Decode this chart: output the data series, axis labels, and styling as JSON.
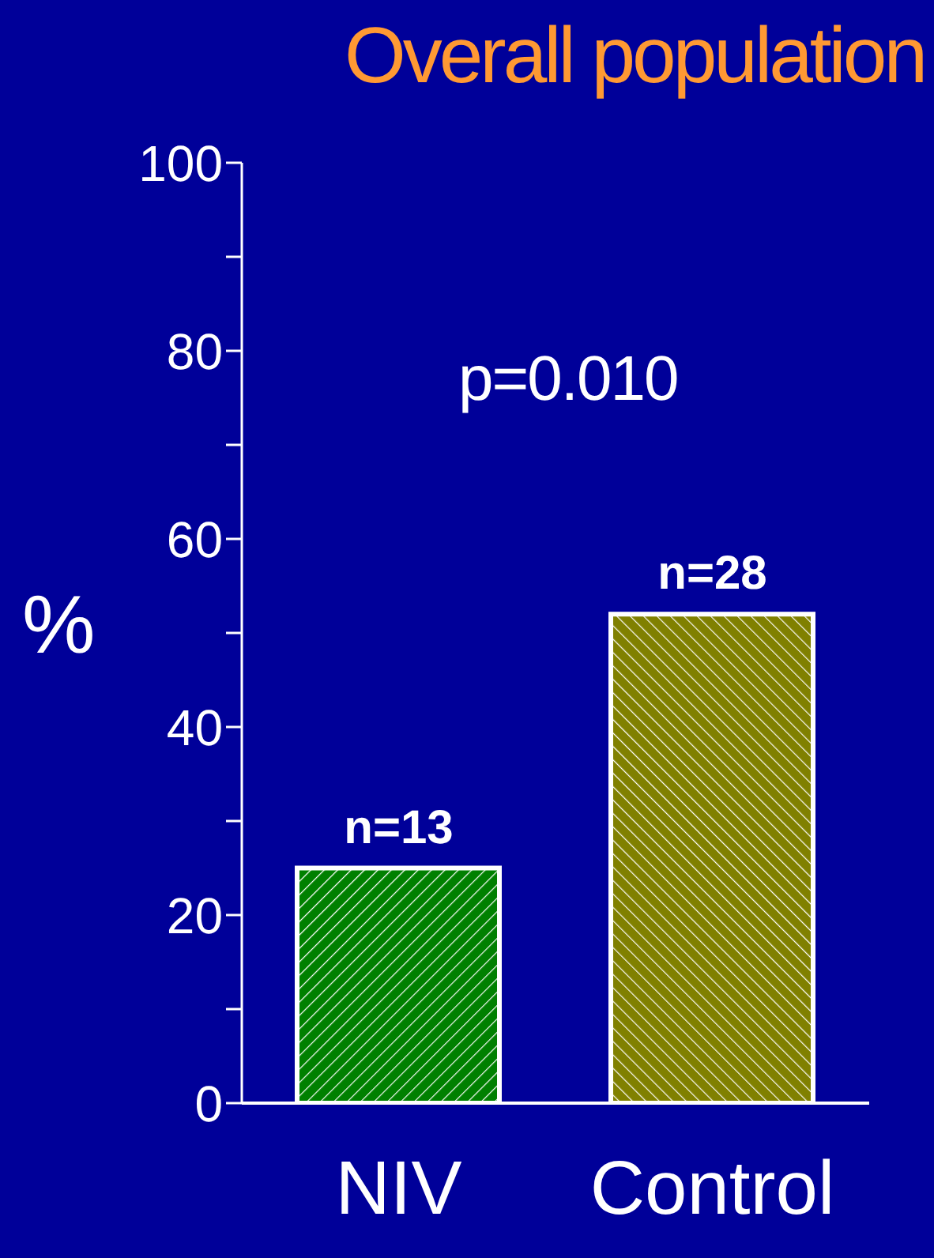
{
  "chart_data": {
    "type": "bar",
    "title": "Overall population",
    "ylabel": "%",
    "categories": [
      "NIV",
      "Control"
    ],
    "values": [
      25,
      52
    ],
    "colors": [
      "#008000",
      "#808000"
    ],
    "ylim": [
      0,
      100
    ],
    "yticks": [
      0,
      {
        "value": 10,
        "label": null
      },
      20,
      {
        "value": 30,
        "label": null
      },
      40,
      {
        "value": 50,
        "label": null
      },
      60,
      {
        "value": 70,
        "label": null
      },
      80,
      {
        "value": 90,
        "label": null
      },
      100
    ],
    "annotations": [
      "p=0.010",
      {
        "text": "n=13",
        "x": "NIV",
        "y": 25
      },
      {
        "text": "n=28",
        "x": "Control",
        "y": 52
      }
    ]
  }
}
